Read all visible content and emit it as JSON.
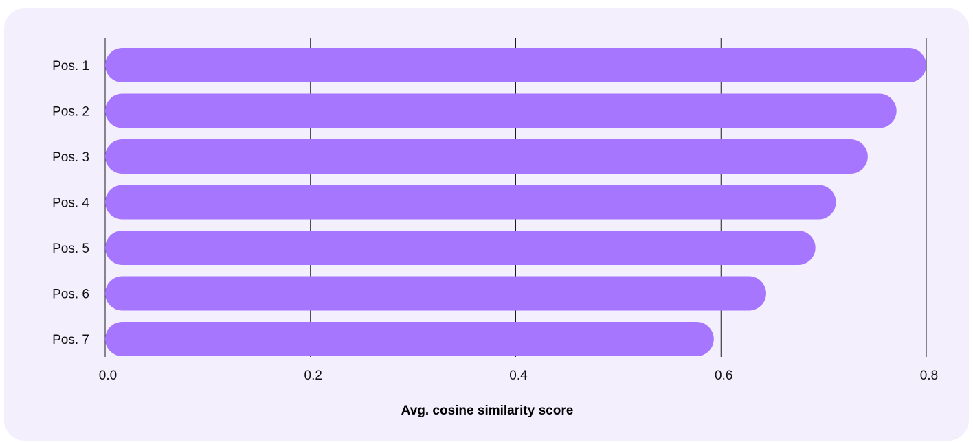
{
  "chart_data": {
    "type": "bar",
    "orientation": "horizontal",
    "categories": [
      "Pos. 1",
      "Pos. 2",
      "Pos. 3",
      "Pos. 4",
      "Pos. 5",
      "Pos. 6",
      "Pos. 7"
    ],
    "values": [
      0.8,
      0.771,
      0.743,
      0.712,
      0.692,
      0.644,
      0.593
    ],
    "xlabel": "Avg. cosine similarity score",
    "ylabel": "",
    "xlim": [
      0,
      0.8
    ],
    "xticks": [
      "0.0",
      "0.2",
      "0.4",
      "0.6",
      "0.8"
    ],
    "grid": "vertical",
    "bar_color": "#a776ff",
    "background_color": "#f3effd"
  }
}
